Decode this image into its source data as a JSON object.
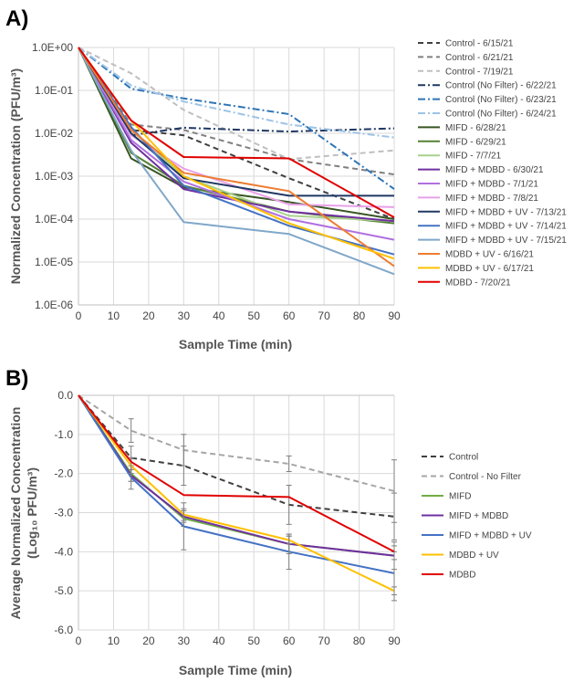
{
  "chart_data": [
    {
      "panel_label": "A)",
      "type": "line",
      "yscale": "log",
      "xlabel": "Sample Time (min)",
      "ylabel": "Normalized Concentration (PFU/m³)",
      "xlim": [
        0,
        90
      ],
      "xticks": [
        "0",
        "10",
        "20",
        "30",
        "40",
        "50",
        "60",
        "70",
        "80",
        "90"
      ],
      "ylim": [
        1e-06,
        1
      ],
      "yticks": [
        {
          "label": "1.0E+00",
          "value": 1
        },
        {
          "label": "1.0E-01",
          "value": 0.1
        },
        {
          "label": "1.0E-02",
          "value": 0.01
        },
        {
          "label": "1.0E-03",
          "value": 0.001
        },
        {
          "label": "1.0E-04",
          "value": 0.0001
        },
        {
          "label": "1.0E-05",
          "value": 1e-05
        },
        {
          "label": "1.0E-06",
          "value": 1e-06
        }
      ],
      "legend_position": "right",
      "x": [
        0,
        15,
        30,
        60,
        90
      ],
      "series": [
        {
          "name": "Control - 6/15/21",
          "color": "#404040",
          "dash": "6,4",
          "values": [
            1,
            0.012,
            0.009,
            0.0009,
            0.0001
          ]
        },
        {
          "name": "Control - 6/21/21",
          "color": "#808080",
          "dash": "6,4",
          "values": [
            1,
            0.016,
            0.012,
            0.0025,
            0.0011
          ]
        },
        {
          "name": "Control - 7/19/21",
          "color": "#bfbfbf",
          "dash": "6,4",
          "values": [
            1,
            0.25,
            0.035,
            0.0025,
            0.004
          ]
        },
        {
          "name": "Control (No Filter) - 6/22/21",
          "color": "#1f3864",
          "dash": "8,3,2,3",
          "values": [
            1,
            0.009,
            0.0135,
            0.011,
            0.013
          ]
        },
        {
          "name": "Control (No Filter) - 6/23/21",
          "color": "#2e75b6",
          "dash": "8,3,2,3",
          "values": [
            1,
            0.11,
            0.065,
            0.028,
            0.0005
          ]
        },
        {
          "name": "Control (No Filter) - 6/24/21",
          "color": "#9dc3e6",
          "dash": "8,3,2,3",
          "values": [
            1,
            0.13,
            0.055,
            0.016,
            0.008
          ]
        },
        {
          "name": "MIFD - 6/28/21",
          "color": "#375623",
          "dash": "",
          "values": [
            1,
            0.0026,
            0.00055,
            0.00025,
            0.0001
          ]
        },
        {
          "name": "MIFD - 6/29/21",
          "color": "#548235",
          "dash": "",
          "values": [
            1,
            0.0035,
            0.0006,
            0.00015,
            8e-05
          ]
        },
        {
          "name": "MIFD - 7/7/21",
          "color": "#a9d18e",
          "dash": "",
          "values": [
            1,
            0.012,
            0.001,
            0.00012,
            9e-05
          ]
        },
        {
          "name": "MIFD + MDBD - 6/30/21",
          "color": "#7030a0",
          "dash": "",
          "values": [
            1,
            0.006,
            0.0005,
            0.00015,
            9e-05
          ]
        },
        {
          "name": "MIFD + MDBD - 7/1/21",
          "color": "#b070e0",
          "dash": "",
          "values": [
            1,
            0.007,
            0.00075,
            0.0001,
            3.3e-05
          ]
        },
        {
          "name": "MIFD + MDBD - 7/8/21",
          "color": "#e8a0e8",
          "dash": "",
          "values": [
            1,
            0.009,
            0.0015,
            0.00022,
            0.00019
          ]
        },
        {
          "name": "MIFD + MDBD + UV - 7/13/21",
          "color": "#203864",
          "dash": "",
          "values": [
            1,
            0.01,
            0.0009,
            0.00035,
            0.00035
          ]
        },
        {
          "name": "MIFD + MDBD + UV - 7/14/21",
          "color": "#4472c4",
          "dash": "",
          "values": [
            1,
            0.014,
            0.0006,
            7e-05,
            1.5e-05
          ]
        },
        {
          "name": "MIFD + MDBD + UV - 7/15/21",
          "color": "#7fa7c9",
          "dash": "",
          "values": [
            1,
            0.004,
            8.5e-05,
            4.5e-05,
            5.2e-06
          ]
        },
        {
          "name": "MDBD + UV - 6/16/21",
          "color": "#ed7d31",
          "dash": "",
          "values": [
            1,
            0.012,
            0.0012,
            0.00045,
            8e-06
          ]
        },
        {
          "name": "MDBD + UV - 6/17/21",
          "color": "#ffc000",
          "dash": "",
          "values": [
            1,
            0.02,
            0.001,
            8e-05,
            1.2e-05
          ]
        },
        {
          "name": "MDBD - 7/20/21",
          "color": "#e00000",
          "dash": "",
          "values": [
            1,
            0.02,
            0.0028,
            0.0026,
            0.00011
          ]
        }
      ]
    },
    {
      "panel_label": "B)",
      "type": "line",
      "xlabel": "Sample Time (min)",
      "ylabel_line1": "Average Normalized Concentration",
      "ylabel_line2": "(Log₁₀ PFU/m³)",
      "xlim": [
        0,
        90
      ],
      "xticks": [
        "0",
        "10",
        "20",
        "30",
        "40",
        "50",
        "60",
        "70",
        "80",
        "90"
      ],
      "ylim": [
        -6,
        0
      ],
      "yticks": [
        {
          "label": "0.0",
          "value": 0
        },
        {
          "label": "-1.0",
          "value": -1
        },
        {
          "label": "-2.0",
          "value": -2
        },
        {
          "label": "-3.0",
          "value": -3
        },
        {
          "label": "-4.0",
          "value": -4
        },
        {
          "label": "-5.0",
          "value": -5
        },
        {
          "label": "-6.0",
          "value": -6
        }
      ],
      "legend_position": "right",
      "x": [
        0,
        15,
        30,
        60,
        90
      ],
      "series": [
        {
          "name": "Control",
          "color": "#404040",
          "dash": "6,4",
          "values": [
            0,
            -1.6,
            -1.8,
            -2.8,
            -3.1
          ],
          "errors": [
            0,
            0.3,
            0.5,
            0.5,
            0.6
          ]
        },
        {
          "name": "Control - No Filter",
          "color": "#a6a6a6",
          "dash": "6,4",
          "values": [
            0,
            -0.9,
            -1.4,
            -1.75,
            -2.45
          ],
          "errors": [
            0,
            0.3,
            0.4,
            0.2,
            0.8
          ]
        },
        {
          "name": "MIFD",
          "color": "#70ad47",
          "dash": "",
          "values": [
            0,
            -2.0,
            -3.15,
            -3.8,
            -4.1
          ],
          "errors": [
            0,
            0.2,
            0.2,
            0.2,
            0.1
          ]
        },
        {
          "name": "MIFD + MDBD",
          "color": "#7030a0",
          "dash": "",
          "values": [
            0,
            -2.05,
            -3.1,
            -3.8,
            -4.1
          ],
          "errors": [
            0,
            0.15,
            0.15,
            0.25,
            0.35
          ]
        },
        {
          "name": "MIFD + MDBD + UV",
          "color": "#4472c4",
          "dash": "",
          "values": [
            0,
            -2.1,
            -3.35,
            -4.0,
            -4.55
          ],
          "errors": [
            0,
            0.3,
            0.6,
            0.45,
            0.7
          ]
        },
        {
          "name": "MDBD + UV",
          "color": "#ffc000",
          "dash": "",
          "values": [
            0,
            -1.8,
            -3.05,
            -3.7,
            -5.0
          ],
          "errors": [
            0,
            0.2,
            0.15,
            0.1,
            0.1
          ]
        },
        {
          "name": "MDBD",
          "color": "#e00000",
          "dash": "",
          "values": [
            0,
            -1.7,
            -2.55,
            -2.6,
            -4.0
          ],
          "errors": [
            0,
            0.0,
            0.0,
            0.0,
            0.0
          ]
        }
      ]
    }
  ]
}
